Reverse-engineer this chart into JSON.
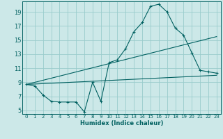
{
  "title": "",
  "xlabel": "Humidex (Indice chaleur)",
  "bg_color": "#cce8e8",
  "line_color": "#006060",
  "grid_color": "#99cccc",
  "xlim": [
    -0.5,
    23.5
  ],
  "ylim": [
    4.5,
    20.5
  ],
  "xticks": [
    0,
    1,
    2,
    3,
    4,
    5,
    6,
    7,
    8,
    9,
    10,
    11,
    12,
    13,
    14,
    15,
    16,
    17,
    18,
    19,
    20,
    21,
    22,
    23
  ],
  "yticks": [
    5,
    7,
    9,
    11,
    13,
    15,
    17,
    19
  ],
  "line1_x": [
    0,
    1,
    2,
    3,
    4,
    5,
    6,
    7,
    8,
    9,
    10,
    11,
    12,
    13,
    14,
    15,
    16,
    17,
    18,
    19,
    20,
    21,
    22,
    23
  ],
  "line1_y": [
    8.7,
    8.5,
    7.2,
    6.3,
    6.2,
    6.2,
    6.2,
    4.8,
    9.0,
    6.3,
    11.8,
    12.2,
    13.8,
    16.2,
    17.5,
    19.8,
    20.1,
    19.0,
    16.7,
    15.7,
    13.2,
    10.7,
    10.5,
    10.3
  ],
  "line2_x": [
    0,
    23
  ],
  "line2_y": [
    8.7,
    15.5
  ],
  "line3_x": [
    0,
    23
  ],
  "line3_y": [
    8.7,
    10.0
  ]
}
